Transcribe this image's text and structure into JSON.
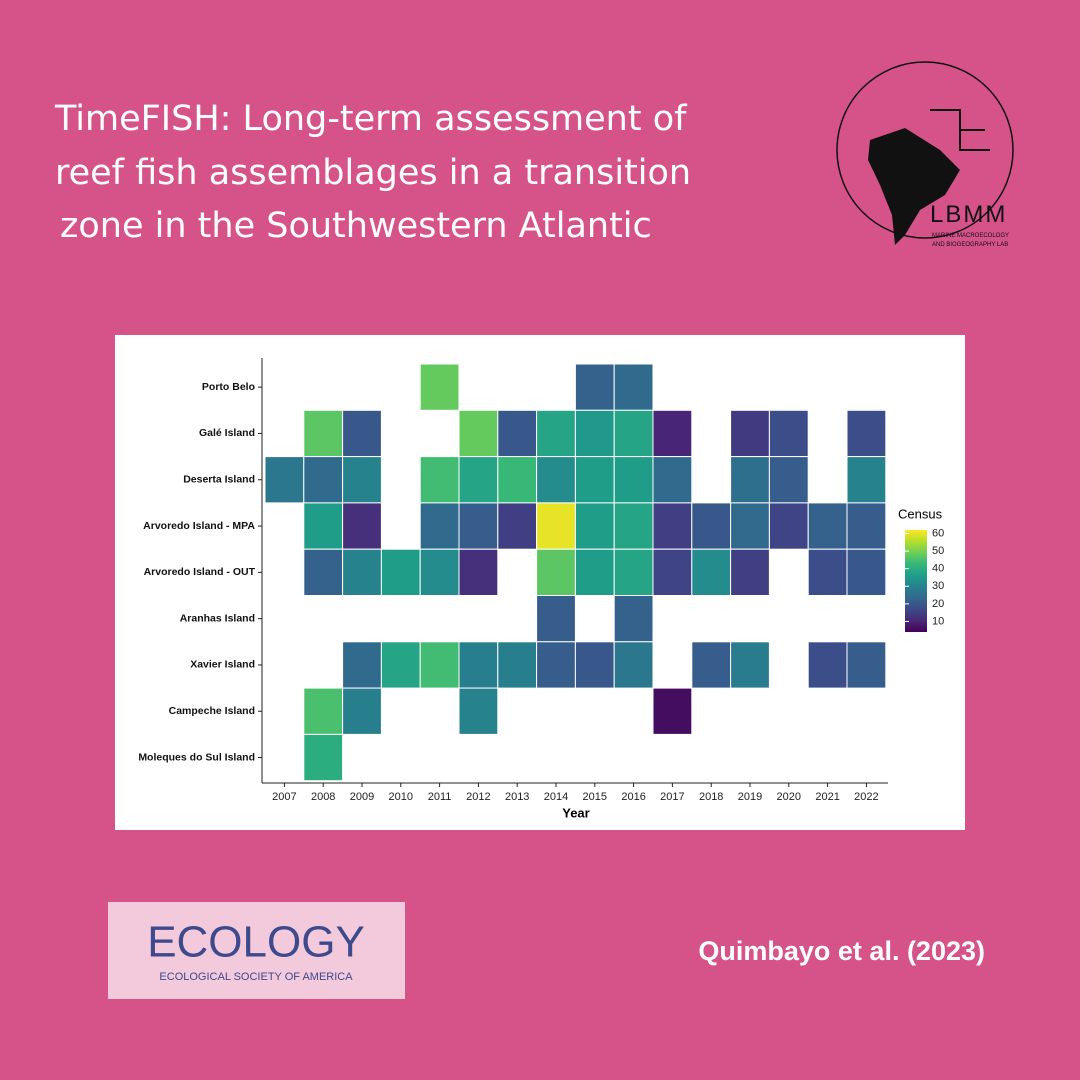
{
  "header": {
    "title": [
      "TimeFISH: Long-term assessment of",
      "reef fish assemblages in a transition",
      "zone in the Southwestern Atlantic"
    ]
  },
  "logo": {
    "name": "LBMM",
    "subtitle": [
      "MARINE MACROECOLOGY",
      "AND BIOGEOGRAPHY LAB"
    ]
  },
  "journal": {
    "name": "ECOLOGY",
    "publisher": "ECOLOGICAL SOCIETY OF AMERICA"
  },
  "citation": "Quimbayo et al. (2023)",
  "chart_data": {
    "type": "heatmap",
    "x_label": "Year",
    "legend_title": "Census",
    "categories": [
      "2007",
      "2008",
      "2009",
      "2010",
      "2011",
      "2012",
      "2013",
      "2014",
      "2015",
      "2016",
      "2017",
      "2018",
      "2019",
      "2020",
      "2021",
      "2022"
    ],
    "rows": [
      "Porto Belo",
      "Galé Island",
      "Deserta Island",
      "Arvoredo Island - MPA",
      "Arvoredo Island - OUT",
      "Aranhas Island",
      "Xavier Island",
      "Campeche Island",
      "Moleques do Sul Island"
    ],
    "values": [
      [
        null,
        null,
        null,
        null,
        48,
        null,
        null,
        null,
        22,
        24,
        null,
        null,
        null,
        null,
        null,
        null
      ],
      [
        null,
        47,
        20,
        null,
        null,
        48,
        20,
        38,
        35,
        38,
        10,
        null,
        14,
        18,
        null,
        18
      ],
      [
        27,
        24,
        30,
        null,
        44,
        38,
        43,
        32,
        36,
        36,
        24,
        null,
        25,
        21,
        null,
        30
      ],
      [
        null,
        36,
        12,
        null,
        24,
        21,
        15,
        60,
        36,
        38,
        15,
        20,
        24,
        16,
        22,
        21
      ],
      [
        null,
        22,
        30,
        36,
        32,
        12,
        null,
        47,
        36,
        38,
        16,
        32,
        15,
        null,
        18,
        20
      ],
      [
        null,
        null,
        null,
        null,
        null,
        null,
        null,
        21,
        null,
        22,
        null,
        null,
        null,
        null,
        null,
        null
      ],
      [
        null,
        null,
        24,
        38,
        44,
        29,
        29,
        21,
        20,
        27,
        null,
        21,
        28,
        null,
        18,
        21
      ],
      [
        null,
        45,
        29,
        null,
        null,
        30,
        null,
        null,
        null,
        null,
        6,
        null,
        null,
        null,
        null,
        null
      ],
      [
        null,
        40,
        null,
        null,
        null,
        null,
        null,
        null,
        null,
        null,
        null,
        null,
        null,
        null,
        null,
        null
      ]
    ],
    "clim": [
      4,
      62
    ],
    "cticks": [
      10,
      20,
      30,
      40,
      50,
      60
    ],
    "colorscale": [
      "#440154",
      "#482878",
      "#3e4989",
      "#31688e",
      "#26828e",
      "#1f9e89",
      "#35b779",
      "#6ece58",
      "#b5de2b",
      "#fde725"
    ]
  }
}
